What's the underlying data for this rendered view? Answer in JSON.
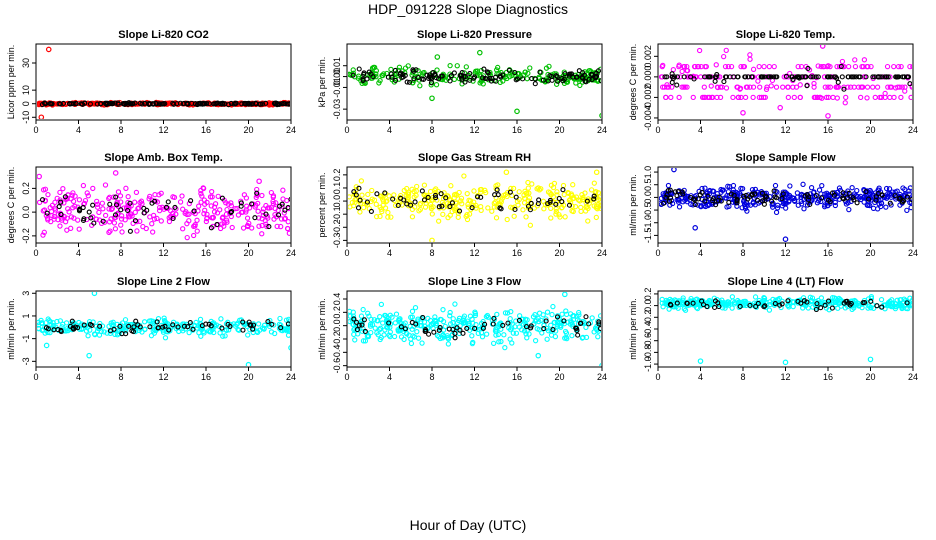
{
  "figure": {
    "title": "HDP_091228  Slope Diagnostics",
    "xlabel": "Hour of Day (UTC)"
  },
  "chart_data": [
    {
      "id": "co2",
      "type": "scatter",
      "title": "Slope Li-820 CO2",
      "ylabel": "Licor ppm per min.",
      "color": "#ff0000",
      "xlim": [
        0,
        24
      ],
      "ylim": [
        -12,
        44
      ],
      "xticks": [
        0,
        4,
        8,
        12,
        16,
        20,
        24
      ],
      "xtick_labels": [
        "0",
        "4",
        "8",
        "12",
        "16",
        "20",
        "24"
      ],
      "yticks": [
        -10,
        0,
        10,
        30
      ],
      "ytick_labels": [
        "-10",
        "0",
        "10",
        "30"
      ],
      "center": 0,
      "spread": 0.4,
      "density": 260,
      "dark_density": 140,
      "outliers": [
        [
          1.2,
          40
        ],
        [
          0.5,
          -10
        ]
      ]
    },
    {
      "id": "pressure",
      "type": "scatter",
      "title": "Slope Li-820 Pressure",
      "ylabel": "kPa per min.",
      "color": "#00c000",
      "xlim": [
        0,
        24
      ],
      "ylim": [
        -0.04,
        0.03
      ],
      "xticks": [
        0,
        4,
        8,
        12,
        16,
        20,
        24
      ],
      "xtick_labels": [
        "0",
        "4",
        "8",
        "12",
        "16",
        "20",
        "24"
      ],
      "yticks": [
        -0.03,
        -0.01,
        0.0,
        0.01
      ],
      "ytick_labels": [
        "-0.03",
        "-0.01",
        "0.00",
        "0.01"
      ],
      "center": 0.0,
      "spread": 0.004,
      "density": 230,
      "dark_density": 120,
      "outliers": [
        [
          8,
          -0.02
        ],
        [
          16,
          -0.032
        ],
        [
          24,
          -0.036
        ],
        [
          12.5,
          0.022
        ],
        [
          8.5,
          0.018
        ]
      ]
    },
    {
      "id": "temp",
      "type": "scatter",
      "title": "Slope Li-820 Temp.",
      "ylabel": "degrees C per min.",
      "color": "#ff00ff",
      "xlim": [
        0,
        24
      ],
      "ylim": [
        -0.0042,
        0.0032
      ],
      "xticks": [
        0,
        4,
        8,
        12,
        16,
        20,
        24
      ],
      "xtick_labels": [
        "0",
        "4",
        "8",
        "12",
        "16",
        "20",
        "24"
      ],
      "yticks": [
        -0.004,
        -0.002,
        0.0,
        0.002
      ],
      "ytick_labels": [
        "-0.004",
        "-0.002",
        "0.000",
        "0.002"
      ],
      "center": 0.0,
      "spread": 0.0006,
      "density": 240,
      "dark_density": 110,
      "levels": [
        -0.002,
        -0.001,
        0.0,
        0.001
      ],
      "outliers": [
        [
          15.5,
          0.003
        ],
        [
          8,
          -0.0035
        ],
        [
          11.5,
          -0.003
        ],
        [
          16,
          -0.0038
        ]
      ]
    },
    {
      "id": "ambtemp",
      "type": "scatter",
      "title": "Slope Amb. Box Temp.",
      "ylabel": "degrees C per min.",
      "color": "#ff00ff",
      "xlim": [
        0,
        24
      ],
      "ylim": [
        -0.26,
        0.38
      ],
      "xticks": [
        0,
        4,
        8,
        12,
        16,
        20,
        24
      ],
      "xtick_labels": [
        "0",
        "4",
        "8",
        "12",
        "16",
        "20",
        "24"
      ],
      "yticks": [
        -0.2,
        0.0,
        0.2
      ],
      "ytick_labels": [
        "-0.2",
        "0.0",
        "0.2"
      ],
      "center": 0.02,
      "spread": 0.09,
      "density": 320,
      "dark_density": 55,
      "outliers": [
        [
          0.3,
          0.3
        ],
        [
          7.5,
          0.33
        ],
        [
          21,
          0.26
        ]
      ]
    },
    {
      "id": "rh",
      "type": "scatter",
      "title": "Slope Gas Stream RH",
      "ylabel": "percent per min.",
      "color": "#ffff00",
      "xlim": [
        0,
        24
      ],
      "ylim": [
        -0.32,
        0.26
      ],
      "xticks": [
        0,
        4,
        8,
        12,
        16,
        20,
        24
      ],
      "xtick_labels": [
        "0",
        "4",
        "8",
        "12",
        "16",
        "20",
        "24"
      ],
      "yticks": [
        -0.3,
        -0.2,
        -0.1,
        0.0,
        0.1,
        0.2
      ],
      "ytick_labels": [
        "-0.3",
        "-0.2",
        "-0.1",
        "0.0",
        "0.1",
        "0.2"
      ],
      "center": 0.0,
      "spread": 0.07,
      "density": 320,
      "dark_density": 55,
      "outliers": [
        [
          8,
          -0.3
        ],
        [
          23.5,
          0.22
        ],
        [
          15,
          0.22
        ]
      ]
    },
    {
      "id": "sampleflow",
      "type": "scatter",
      "title": "Slope Sample Flow",
      "ylabel": "ml/min per min.",
      "color": "#0000dd",
      "xlim": [
        0,
        24
      ],
      "ylim": [
        -1.8,
        1.2
      ],
      "xticks": [
        0,
        4,
        8,
        12,
        16,
        20,
        24
      ],
      "xtick_labels": [
        "0",
        "4",
        "8",
        "12",
        "16",
        "20",
        "24"
      ],
      "yticks": [
        -1.5,
        -1.0,
        -0.5,
        0.0,
        0.5,
        1.0
      ],
      "ytick_labels": [
        "-1.5",
        "-1.0",
        "-0.5",
        "0.0",
        "0.5",
        "1.0"
      ],
      "center": 0.0,
      "spread": 0.22,
      "density": 380,
      "dark_density": 90,
      "outliers": [
        [
          12,
          -1.65
        ],
        [
          1.5,
          1.1
        ],
        [
          3.5,
          -1.2
        ]
      ]
    },
    {
      "id": "line2",
      "type": "scatter",
      "title": "Slope Line 2 Flow",
      "ylabel": "ml/min per min.",
      "color": "#00ffff",
      "xlim": [
        0,
        24
      ],
      "ylim": [
        -3.5,
        3.2
      ],
      "xticks": [
        0,
        4,
        8,
        12,
        16,
        20,
        24
      ],
      "xtick_labels": [
        "0",
        "4",
        "8",
        "12",
        "16",
        "20",
        "24"
      ],
      "yticks": [
        -3,
        -1,
        1,
        3
      ],
      "ytick_labels": [
        "-3",
        "-1",
        "1",
        "3"
      ],
      "center": 0.0,
      "spread": 0.35,
      "density": 280,
      "dark_density": 60,
      "outliers": [
        [
          5.5,
          3.0
        ],
        [
          20,
          -3.3
        ],
        [
          24,
          -1.8
        ],
        [
          1,
          -1.6
        ],
        [
          5,
          -2.5
        ]
      ]
    },
    {
      "id": "line3",
      "type": "scatter",
      "title": "Slope Line 3 Flow",
      "ylabel": "ml/min per min.",
      "color": "#00ffff",
      "xlim": [
        0,
        24
      ],
      "ylim": [
        -0.62,
        0.52
      ],
      "xticks": [
        0,
        4,
        8,
        12,
        16,
        20,
        24
      ],
      "xtick_labels": [
        "0",
        "4",
        "8",
        "12",
        "16",
        "20",
        "24"
      ],
      "yticks": [
        -0.6,
        -0.4,
        -0.2,
        0.0,
        0.2,
        0.4
      ],
      "ytick_labels": [
        "-0.6",
        "-0.4",
        "-0.2",
        "0.0",
        "0.2",
        "0.4"
      ],
      "center": 0.0,
      "spread": 0.12,
      "density": 360,
      "dark_density": 55,
      "outliers": [
        [
          20.5,
          0.47
        ],
        [
          24,
          -0.6
        ],
        [
          18,
          -0.45
        ]
      ]
    },
    {
      "id": "line4",
      "type": "scatter",
      "title": "Slope Line 4 (LT) Flow",
      "ylabel": "ml/min per min.",
      "color": "#00ffff",
      "xlim": [
        0,
        24
      ],
      "ylim": [
        -1.05,
        0.25
      ],
      "xticks": [
        0,
        4,
        8,
        12,
        16,
        20,
        24
      ],
      "xtick_labels": [
        "0",
        "4",
        "8",
        "12",
        "16",
        "20",
        "24"
      ],
      "yticks": [
        -1.0,
        -0.8,
        -0.6,
        -0.4,
        -0.2,
        0.0,
        0.2
      ],
      "ytick_labels": [
        "-1.0",
        "-0.8",
        "-0.6",
        "-0.4",
        "-0.2",
        "0.0",
        "0.2"
      ],
      "center": 0.04,
      "spread": 0.05,
      "density": 320,
      "dark_density": 45,
      "outliers": [
        [
          4,
          -0.95
        ],
        [
          12,
          -0.97
        ],
        [
          20,
          -0.92
        ]
      ]
    }
  ]
}
